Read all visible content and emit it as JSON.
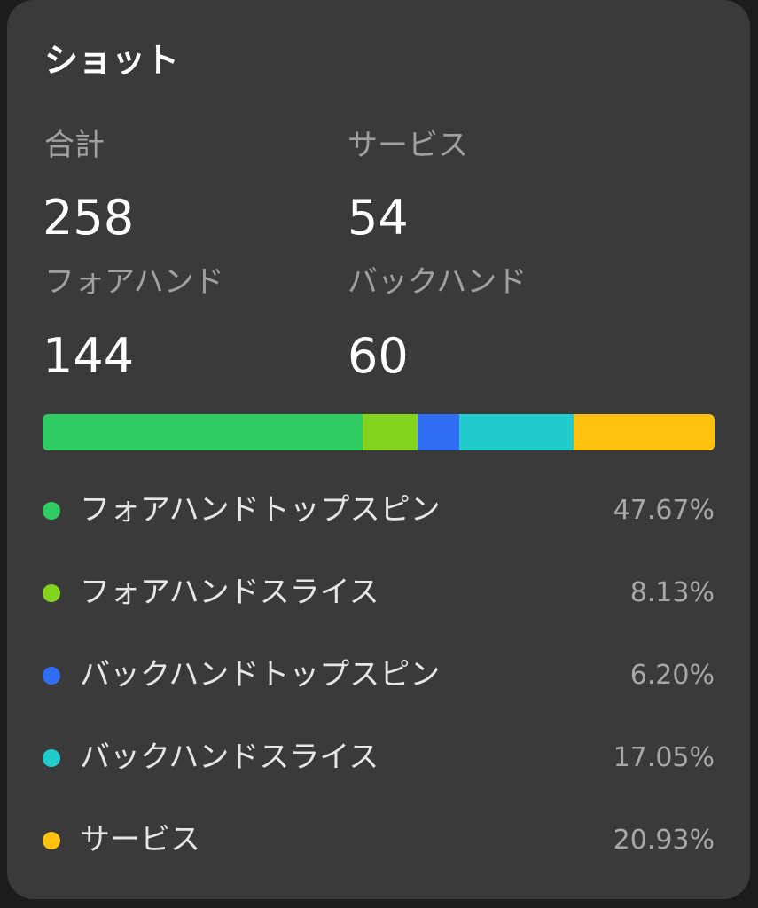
{
  "card": {
    "title": "ショット"
  },
  "stats": [
    {
      "label": "合計",
      "value": "258"
    },
    {
      "label": "サービス",
      "value": "54"
    },
    {
      "label": "フォアハンド",
      "value": "144"
    },
    {
      "label": "バックハンド",
      "value": "60"
    }
  ],
  "chart_data": {
    "type": "bar",
    "categories": [
      "フォアハンドトップスピン",
      "フォアハンドスライス",
      "バックハンドトップスピン",
      "バックハンドスライス",
      "サービス"
    ],
    "values": [
      47.67,
      8.13,
      6.2,
      17.05,
      20.93
    ],
    "labels": [
      "47.67%",
      "8.13%",
      "6.20%",
      "17.05%",
      "20.93%"
    ],
    "colors": [
      "#2ecc63",
      "#84d41f",
      "#2f6ef2",
      "#22cccc",
      "#ffc20e"
    ],
    "stacked": true,
    "orientation": "horizontal",
    "legend_position": "bottom"
  }
}
